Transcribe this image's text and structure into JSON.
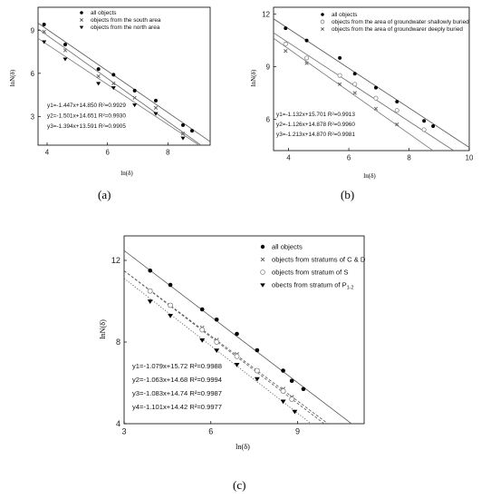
{
  "panels": [
    {
      "caption": "(a)",
      "chart_data": {
        "type": "scatter",
        "xlabel": "ln(δ)",
        "ylabel": "lnN(δ)",
        "xlim": [
          3.7,
          9.4
        ],
        "ylim": [
          1.0,
          10.6
        ],
        "xticks": [
          4,
          6,
          8
        ],
        "yticks": [
          3,
          6,
          9
        ],
        "legend_position": "top-center",
        "series": [
          {
            "name": "all objects",
            "marker": "circle",
            "x": [
              3.9,
              4.6,
              5.7,
              6.2,
              6.9,
              7.6,
              8.5,
              8.8
            ],
            "y": [
              9.4,
              8.0,
              6.3,
              5.9,
              4.8,
              4.1,
              2.4,
              2.0
            ],
            "fit": {
              "slope": -1.447,
              "intercept": 14.85,
              "r2": "0.9929"
            }
          },
          {
            "name": "objects from the south area",
            "marker": "x",
            "x": [
              3.9,
              4.6,
              5.7,
              6.2,
              6.9,
              7.6,
              8.5
            ],
            "y": [
              8.9,
              7.6,
              5.8,
              5.3,
              4.3,
              3.6,
              1.8
            ],
            "fit": {
              "slope": -1.501,
              "intercept": 14.651,
              "r2": "0.9930"
            }
          },
          {
            "name": "objects from the north area",
            "marker": "triangle",
            "x": [
              3.9,
              4.6,
              5.7,
              6.2,
              6.9,
              7.6,
              8.5
            ],
            "y": [
              8.2,
              7.0,
              5.3,
              5.0,
              3.8,
              3.2,
              1.5
            ],
            "fit": {
              "slope": -1.394,
              "intercept": 13.591,
              "r2": "0.9905"
            }
          }
        ],
        "equations": [
          "y1=-1.447x+14.850  R²=0.9929",
          "y2=-1.501x+14.651  R²=0.9930",
          "y3=-1.394x+13.591  R²=0.9905"
        ]
      }
    },
    {
      "caption": "(b)",
      "chart_data": {
        "type": "scatter",
        "xlabel": "ln(δ)",
        "ylabel": "lnN(δ)",
        "xlim": [
          3.5,
          10.0
        ],
        "ylim": [
          4.2,
          12.4
        ],
        "xticks": [
          4,
          6,
          8,
          10
        ],
        "yticks": [
          6,
          9,
          12
        ],
        "legend_position": "top-center",
        "series": [
          {
            "name": "all objects",
            "marker": "circle",
            "x": [
              3.9,
              4.6,
              5.7,
              6.2,
              6.9,
              7.6,
              8.5,
              8.8
            ],
            "y": [
              11.2,
              10.5,
              9.5,
              8.6,
              7.8,
              7.0,
              5.9,
              5.6
            ],
            "fit": {
              "slope": -1.132,
              "intercept": 15.701,
              "r2": "0.9913"
            }
          },
          {
            "name": "objects from the area of groundwater shallowly buried",
            "marker": "circle-open",
            "x": [
              3.9,
              4.6,
              5.7,
              6.2,
              6.9,
              7.6,
              8.5
            ],
            "y": [
              10.3,
              9.5,
              8.5,
              8.0,
              7.2,
              6.5,
              5.4
            ],
            "fit": {
              "slope": -1.126,
              "intercept": 14.878,
              "r2": "0.9960"
            }
          },
          {
            "name": "objects from the area of groundwarer deeply buried",
            "marker": "x",
            "x": [
              3.9,
              4.6,
              5.7,
              6.2,
              6.9,
              7.6
            ],
            "y": [
              9.9,
              9.2,
              8.0,
              7.5,
              6.6,
              5.7
            ],
            "fit": {
              "slope": -1.213,
              "intercept": 14.87,
              "r2": "0.9981"
            }
          }
        ],
        "equations": [
          "y1=-1.132x+15.701  R²=0.9913",
          "y2=-1.126x+14.878  R²=0.9960",
          "y3=-1.213x+14.870  R²=0.9981"
        ]
      }
    },
    {
      "caption": "(c)",
      "chart_data": {
        "type": "scatter",
        "xlabel": "ln(δ)",
        "ylabel": "lnN(δ)",
        "xlim": [
          3,
          11.3
        ],
        "ylim": [
          4,
          13.2
        ],
        "xticks": [
          3,
          6,
          9
        ],
        "yticks": [
          4,
          8,
          12
        ],
        "legend_position": "top-right",
        "series": [
          {
            "name": "all objects",
            "marker": "circle",
            "x": [
              3.9,
              4.6,
              5.7,
              6.2,
              6.9,
              7.6,
              8.5,
              8.8,
              9.2
            ],
            "y": [
              11.5,
              10.8,
              9.6,
              9.1,
              8.4,
              7.6,
              6.6,
              6.1,
              5.7
            ],
            "fit": {
              "slope": -1.079,
              "intercept": 15.72,
              "r2": "0.9988"
            }
          },
          {
            "name": "objects from stratums of  C & D",
            "marker": "x",
            "x": [
              3.9,
              4.6,
              5.7,
              6.2,
              6.9,
              7.6,
              8.5,
              8.8
            ],
            "y": [
              10.5,
              9.8,
              8.7,
              8.1,
              7.4,
              6.6,
              5.7,
              5.3
            ],
            "fit": {
              "slope": -1.063,
              "intercept": 14.68,
              "r2": "0.9994"
            }
          },
          {
            "name": "objects from stratum of S",
            "marker": "circle-open",
            "x": [
              3.9,
              4.6,
              5.7,
              6.2,
              6.9,
              7.6,
              8.5,
              8.8
            ],
            "y": [
              10.5,
              9.8,
              8.6,
              8.0,
              7.3,
              6.6,
              5.6,
              5.2
            ],
            "fit": {
              "slope": -1.083,
              "intercept": 14.74,
              "r2": "0.9987"
            }
          },
          {
            "name": "obects from stratum of P",
            "name_subscript": "1-2",
            "marker": "triangle",
            "x": [
              3.9,
              4.6,
              5.7,
              6.2,
              6.9,
              7.6,
              8.5,
              8.9
            ],
            "y": [
              10.0,
              9.3,
              8.1,
              7.6,
              6.9,
              6.2,
              5.1,
              4.6
            ],
            "fit": {
              "slope": -1.101,
              "intercept": 14.42,
              "r2": "0.9977"
            }
          }
        ],
        "equations": [
          "y1=-1.079x+15.72  R²=0.9988",
          "y2=-1.063x+14.68  R²=0.9994",
          "y3=-1.083x+14.74  R²=0.9987",
          "y4=-1.101x+14.42  R²=0.9977"
        ]
      }
    }
  ]
}
